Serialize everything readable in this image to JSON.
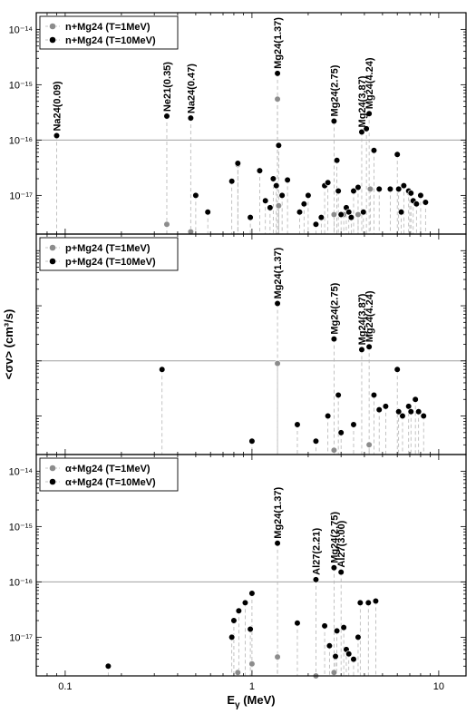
{
  "chart_data": {
    "type": "scatter",
    "x_scale": "log",
    "y_scale": "log",
    "xlim": [
      0.07,
      14
    ],
    "ylim": [
      2e-18,
      2e-14
    ],
    "xticks": [
      0.1,
      1,
      10
    ],
    "xtick_labels": [
      "0.1",
      "1",
      "10"
    ],
    "yticks": [
      1e-14,
      1e-15,
      1e-16,
      1e-17
    ],
    "xlabel": "E",
    "xlabel_sub": "γ",
    "xlabel_unit": " (MeV)",
    "ylabel": "<σv> (cm³/s)",
    "reference_line": 1e-16,
    "colors": {
      "T1": "#8c8c8c",
      "T10": "#000000",
      "ref_line": "#a0a0a0"
    },
    "panels": [
      {
        "ytick_labels": [
          "10⁻¹⁴",
          "10⁻¹⁵",
          "10⁻¹⁶",
          "10⁻¹⁷"
        ],
        "legend_position": "top-left",
        "series": [
          {
            "name": "n+Mg24 (T=1MeV)",
            "color_key": "T1",
            "points": [
              [
                0.35,
                3e-18
              ],
              [
                0.47,
                2.2e-18
              ],
              [
                0.84,
                3.6e-17
              ],
              [
                1.37,
                5.5e-16
              ],
              [
                1.39,
                6.5e-18
              ],
              [
                2.75,
                4.5e-18
              ],
              [
                3.1,
                4.5e-18
              ],
              [
                3.7,
                4.5e-18
              ],
              [
                4.3,
                1.3e-17
              ],
              [
                7.0,
                1.1e-17
              ]
            ]
          },
          {
            "name": "n+Mg24 (T=10MeV)",
            "color_key": "T10",
            "points": [
              [
                0.09,
                1.2e-16
              ],
              [
                0.35,
                2.7e-16
              ],
              [
                0.47,
                2.5e-16
              ],
              [
                0.5,
                1e-17
              ],
              [
                0.58,
                5e-18
              ],
              [
                0.78,
                1.8e-17
              ],
              [
                0.84,
                3.8e-17
              ],
              [
                0.98,
                4e-18
              ],
              [
                1.1,
                2.8e-17
              ],
              [
                1.18,
                8e-18
              ],
              [
                1.25,
                6e-18
              ],
              [
                1.3,
                2e-17
              ],
              [
                1.35,
                1.5e-17
              ],
              [
                1.37,
                1.6e-15
              ],
              [
                1.39,
                8e-17
              ],
              [
                1.45,
                1e-17
              ],
              [
                1.55,
                1.9e-17
              ],
              [
                1.8,
                5e-18
              ],
              [
                1.9,
                7e-18
              ],
              [
                2.0,
                1e-17
              ],
              [
                2.2,
                3e-18
              ],
              [
                2.35,
                4e-18
              ],
              [
                2.45,
                1.5e-17
              ],
              [
                2.55,
                1.7e-17
              ],
              [
                2.75,
                2.2e-16
              ],
              [
                2.85,
                4.3e-17
              ],
              [
                2.9,
                1.2e-17
              ],
              [
                3.0,
                4.5e-18
              ],
              [
                3.2,
                6e-18
              ],
              [
                3.3,
                5e-18
              ],
              [
                3.4,
                4e-18
              ],
              [
                3.5,
                1.2e-17
              ],
              [
                3.7,
                1.4e-17
              ],
              [
                3.87,
                1.4e-16
              ],
              [
                3.95,
                5e-18
              ],
              [
                4.1,
                1.6e-16
              ],
              [
                4.24,
                3e-16
              ],
              [
                4.5,
                6.5e-17
              ],
              [
                4.8,
                1.3e-17
              ],
              [
                5.5,
                1.3e-17
              ],
              [
                6.0,
                5.5e-17
              ],
              [
                6.1,
                1.3e-17
              ],
              [
                6.3,
                5e-18
              ],
              [
                6.5,
                1.5e-17
              ],
              [
                6.9,
                1.2e-17
              ],
              [
                7.1,
                1.1e-17
              ],
              [
                7.3,
                8e-18
              ],
              [
                7.6,
                7e-18
              ],
              [
                8.0,
                1e-17
              ],
              [
                8.5,
                7.5e-18
              ]
            ]
          }
        ],
        "labels": [
          {
            "text": "Na24(0.09)",
            "x": 0.09,
            "y": 1.2e-16
          },
          {
            "text": "Ne21(0.35)",
            "x": 0.35,
            "y": 2.7e-16
          },
          {
            "text": "Na24(0.47)",
            "x": 0.47,
            "y": 2.5e-16
          },
          {
            "text": "Mg24(1.37)",
            "x": 1.37,
            "y": 1.6e-15
          },
          {
            "text": "Mg24(2.75)",
            "x": 2.75,
            "y": 2.2e-16
          },
          {
            "text": "Mg24(3.87)",
            "x": 3.87,
            "y": 1.4e-16
          },
          {
            "text": "Mg24(4.24)",
            "x": 4.24,
            "y": 3e-16
          }
        ]
      },
      {
        "ytick_labels": [
          "",
          "",
          "",
          ""
        ],
        "legend_position": "top-left",
        "series": [
          {
            "name": "p+Mg24 (T=1MeV)",
            "color_key": "T1",
            "points": [
              [
                1.37,
                9e-17
              ],
              [
                2.75,
                2.4e-18
              ],
              [
                4.24,
                3e-18
              ]
            ]
          },
          {
            "name": "p+Mg24 (T=10MeV)",
            "color_key": "T10",
            "points": [
              [
                0.33,
                7e-17
              ],
              [
                1.0,
                3.5e-18
              ],
              [
                1.37,
                1.1e-15
              ],
              [
                1.75,
                7e-18
              ],
              [
                2.2,
                3.5e-18
              ],
              [
                2.55,
                1e-17
              ],
              [
                2.75,
                2.5e-16
              ],
              [
                2.9,
                2.4e-17
              ],
              [
                3.0,
                5e-18
              ],
              [
                3.5,
                7e-18
              ],
              [
                3.87,
                1.6e-16
              ],
              [
                4.24,
                1.8e-16
              ],
              [
                4.5,
                2.4e-17
              ],
              [
                4.8,
                1.3e-17
              ],
              [
                5.2,
                1.5e-17
              ],
              [
                6.0,
                7e-17
              ],
              [
                6.1,
                1.2e-17
              ],
              [
                6.4,
                1e-17
              ],
              [
                6.9,
                1.5e-17
              ],
              [
                7.1,
                1.2e-17
              ],
              [
                7.5,
                2e-17
              ],
              [
                7.8,
                1.2e-17
              ],
              [
                8.3,
                1e-17
              ]
            ]
          }
        ],
        "labels": [
          {
            "text": "Mg24(1.37)",
            "x": 1.37,
            "y": 1.1e-15
          },
          {
            "text": "Mg24(2.75)",
            "x": 2.75,
            "y": 2.5e-16
          },
          {
            "text": "Mg24(3.87)",
            "x": 3.87,
            "y": 1.6e-16
          },
          {
            "text": "Mg24(4.24)",
            "x": 4.24,
            "y": 1.8e-16
          }
        ]
      },
      {
        "ytick_labels": [
          "10⁻¹⁴",
          "10⁻¹⁵",
          "10⁻¹⁶",
          "10⁻¹⁷"
        ],
        "legend_position": "top-left",
        "series": [
          {
            "name": "α+Mg24 (T=1MeV)",
            "color_key": "T1",
            "points": [
              [
                0.84,
                2.3e-18
              ],
              [
                1.0,
                3.3e-18
              ],
              [
                1.37,
                4.4e-18
              ],
              [
                2.2,
                2e-18
              ],
              [
                2.75,
                2.3e-18
              ]
            ]
          },
          {
            "name": "α+Mg24 (T=10MeV)",
            "color_key": "T10",
            "points": [
              [
                0.17,
                3e-18
              ],
              [
                0.78,
                1e-17
              ],
              [
                0.8,
                2e-17
              ],
              [
                0.85,
                3e-17
              ],
              [
                0.92,
                4.2e-17
              ],
              [
                0.98,
                1.4e-17
              ],
              [
                1.0,
                6.2e-17
              ],
              [
                1.37,
                5e-16
              ],
              [
                1.75,
                1.8e-17
              ],
              [
                2.2,
                1.1e-16
              ],
              [
                2.45,
                1.6e-17
              ],
              [
                2.6,
                7e-18
              ],
              [
                2.75,
                1.8e-16
              ],
              [
                2.8,
                4.5e-18
              ],
              [
                2.85,
                1.3e-17
              ],
              [
                3.0,
                1.5e-16
              ],
              [
                3.1,
                1.5e-17
              ],
              [
                3.2,
                6e-18
              ],
              [
                3.3,
                5e-18
              ],
              [
                3.5,
                4e-18
              ],
              [
                3.7,
                1e-17
              ],
              [
                3.8,
                4.2e-17
              ],
              [
                4.2,
                4.2e-17
              ],
              [
                4.6,
                4.5e-17
              ]
            ]
          }
        ],
        "labels": [
          {
            "text": "Mg24(1.37)",
            "x": 1.37,
            "y": 5e-16
          },
          {
            "text": "Al27(2.21)",
            "x": 2.2,
            "y": 1.1e-16
          },
          {
            "text": "Mg24(2.75)",
            "x": 2.75,
            "y": 1.8e-16
          },
          {
            "text": "Al27(3.00)",
            "x": 3.0,
            "y": 1.5e-16
          }
        ]
      }
    ]
  }
}
